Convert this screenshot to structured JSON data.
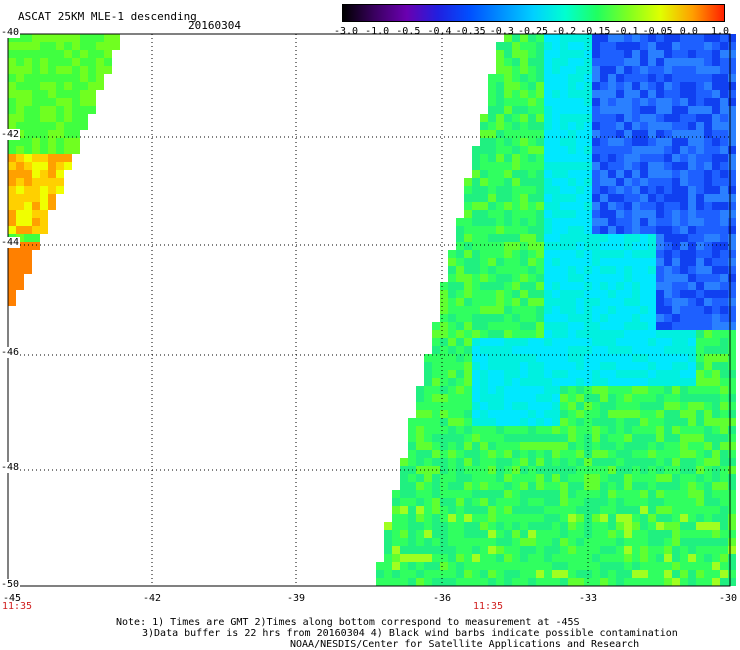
{
  "header": {
    "title": "ASCAT 25KM MLE-1 descending",
    "date": "20160304"
  },
  "colorbar": {
    "ticks": [
      "-3.0",
      "-1.0",
      "-0.5",
      "-0.4",
      "-0.35",
      "-0.3",
      "-0.25",
      "-0.2",
      "-0.15",
      "-0.1",
      "-0.05",
      "0.0",
      "1.0"
    ],
    "colors": [
      "#000000",
      "#3a0060",
      "#6a00b0",
      "#2020e0",
      "#0050ff",
      "#0090ff",
      "#00d0ff",
      "#00ffd0",
      "#20ff60",
      "#80ff20",
      "#e0ff00",
      "#ffa000",
      "#ff2000"
    ]
  },
  "map": {
    "lon_ticks": [
      "-45",
      "-42",
      "-39",
      "-36",
      "-33",
      "-30"
    ],
    "lat_ticks": [
      "-40",
      "-42",
      "-44",
      "-46",
      "-48",
      "-50"
    ],
    "lon_range": [
      -45,
      -30
    ],
    "lat_range": [
      -50,
      -40
    ],
    "times": [
      "11:35",
      "11:35"
    ]
  },
  "notes": {
    "line1": "Note: 1) Times are GMT 2)Times along bottom correspond to measurement at -45S",
    "line2": "3)Data buffer is 22 hrs from 20160304 4) Black wind barbs indicate possible contamination",
    "line3": "NOAA/NESDIS/Center for Satellite Applications and Research"
  }
}
